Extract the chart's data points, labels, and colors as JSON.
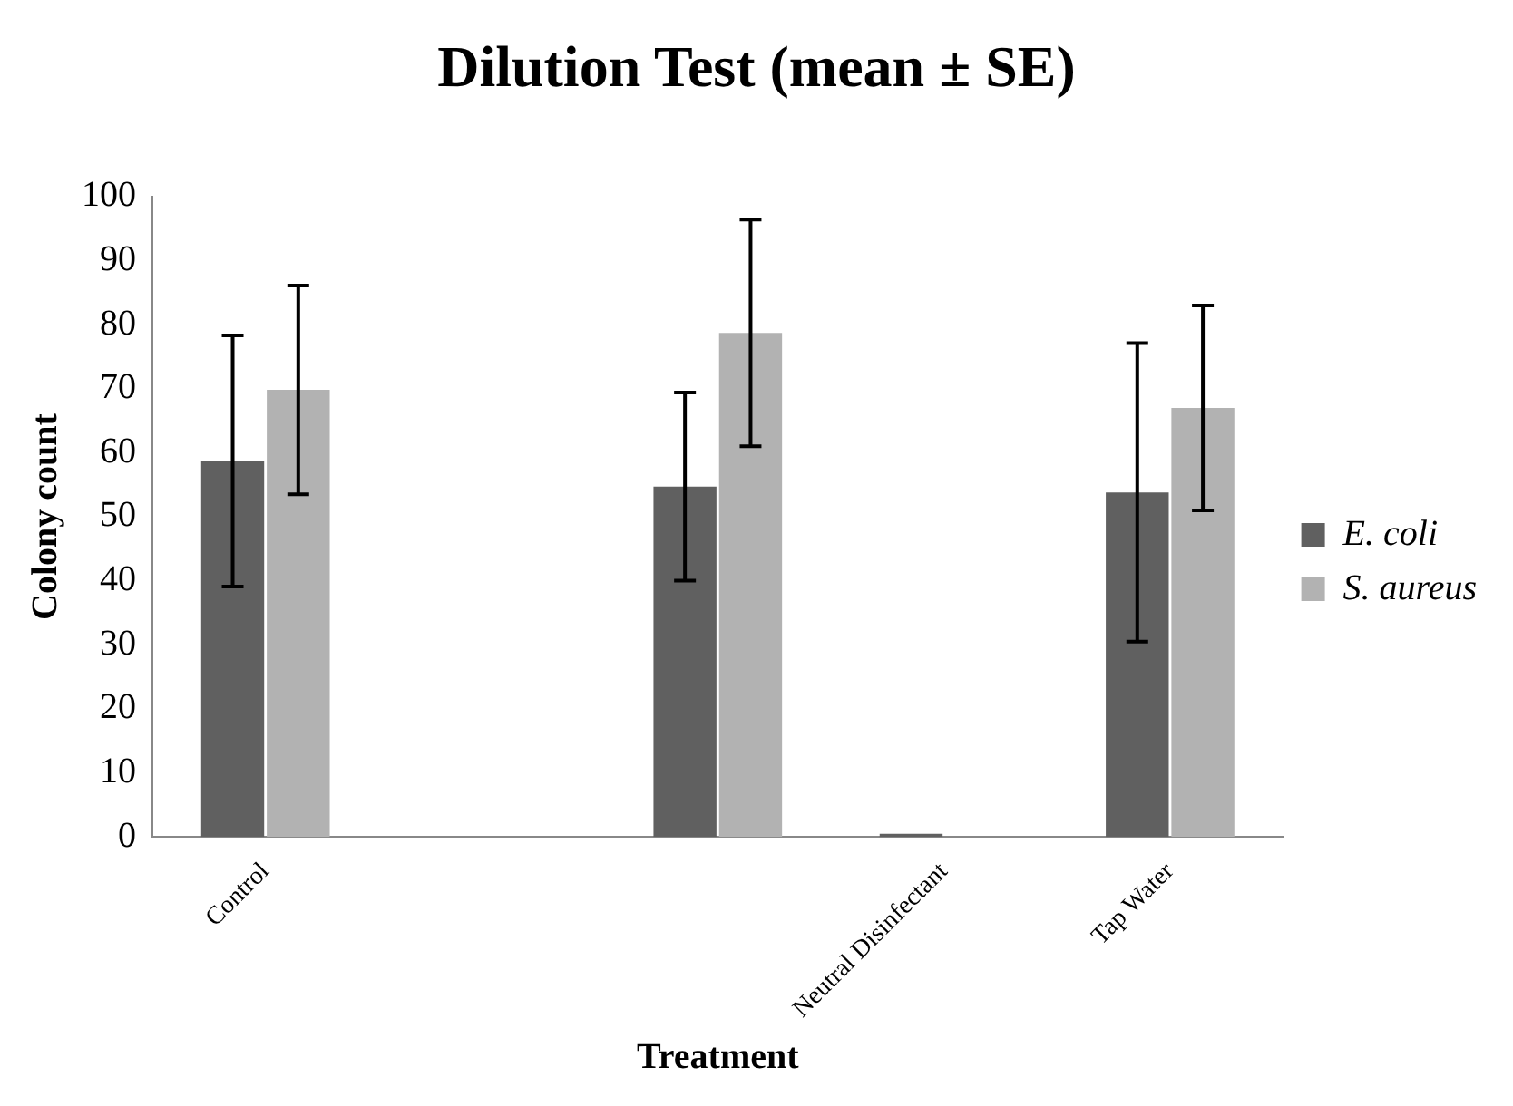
{
  "chart_data": {
    "type": "bar",
    "title": "Dilution Test (mean ± SE)",
    "xlabel": "Treatment",
    "ylabel": "Colony count",
    "categories": [
      "Control",
      null,
      null,
      "Neutral Disinfectant",
      "Tap Water"
    ],
    "series": [
      {
        "name": "E. coli",
        "color": "#606060",
        "values": [
          58.7,
          0,
          54.7,
          0.5,
          53.8
        ],
        "errors": [
          19.6,
          null,
          14.7,
          null,
          23.3
        ]
      },
      {
        "name": "S. aureus",
        "color": "#b2b2b2",
        "values": [
          69.8,
          0,
          78.7,
          0,
          67
        ],
        "errors": [
          16.3,
          null,
          17.7,
          null,
          16
        ]
      }
    ],
    "ylim": [
      0,
      100
    ],
    "yticks": [
      0,
      10,
      20,
      30,
      40,
      50,
      60,
      70,
      80,
      90,
      100
    ],
    "grid": false,
    "legend": "right"
  }
}
